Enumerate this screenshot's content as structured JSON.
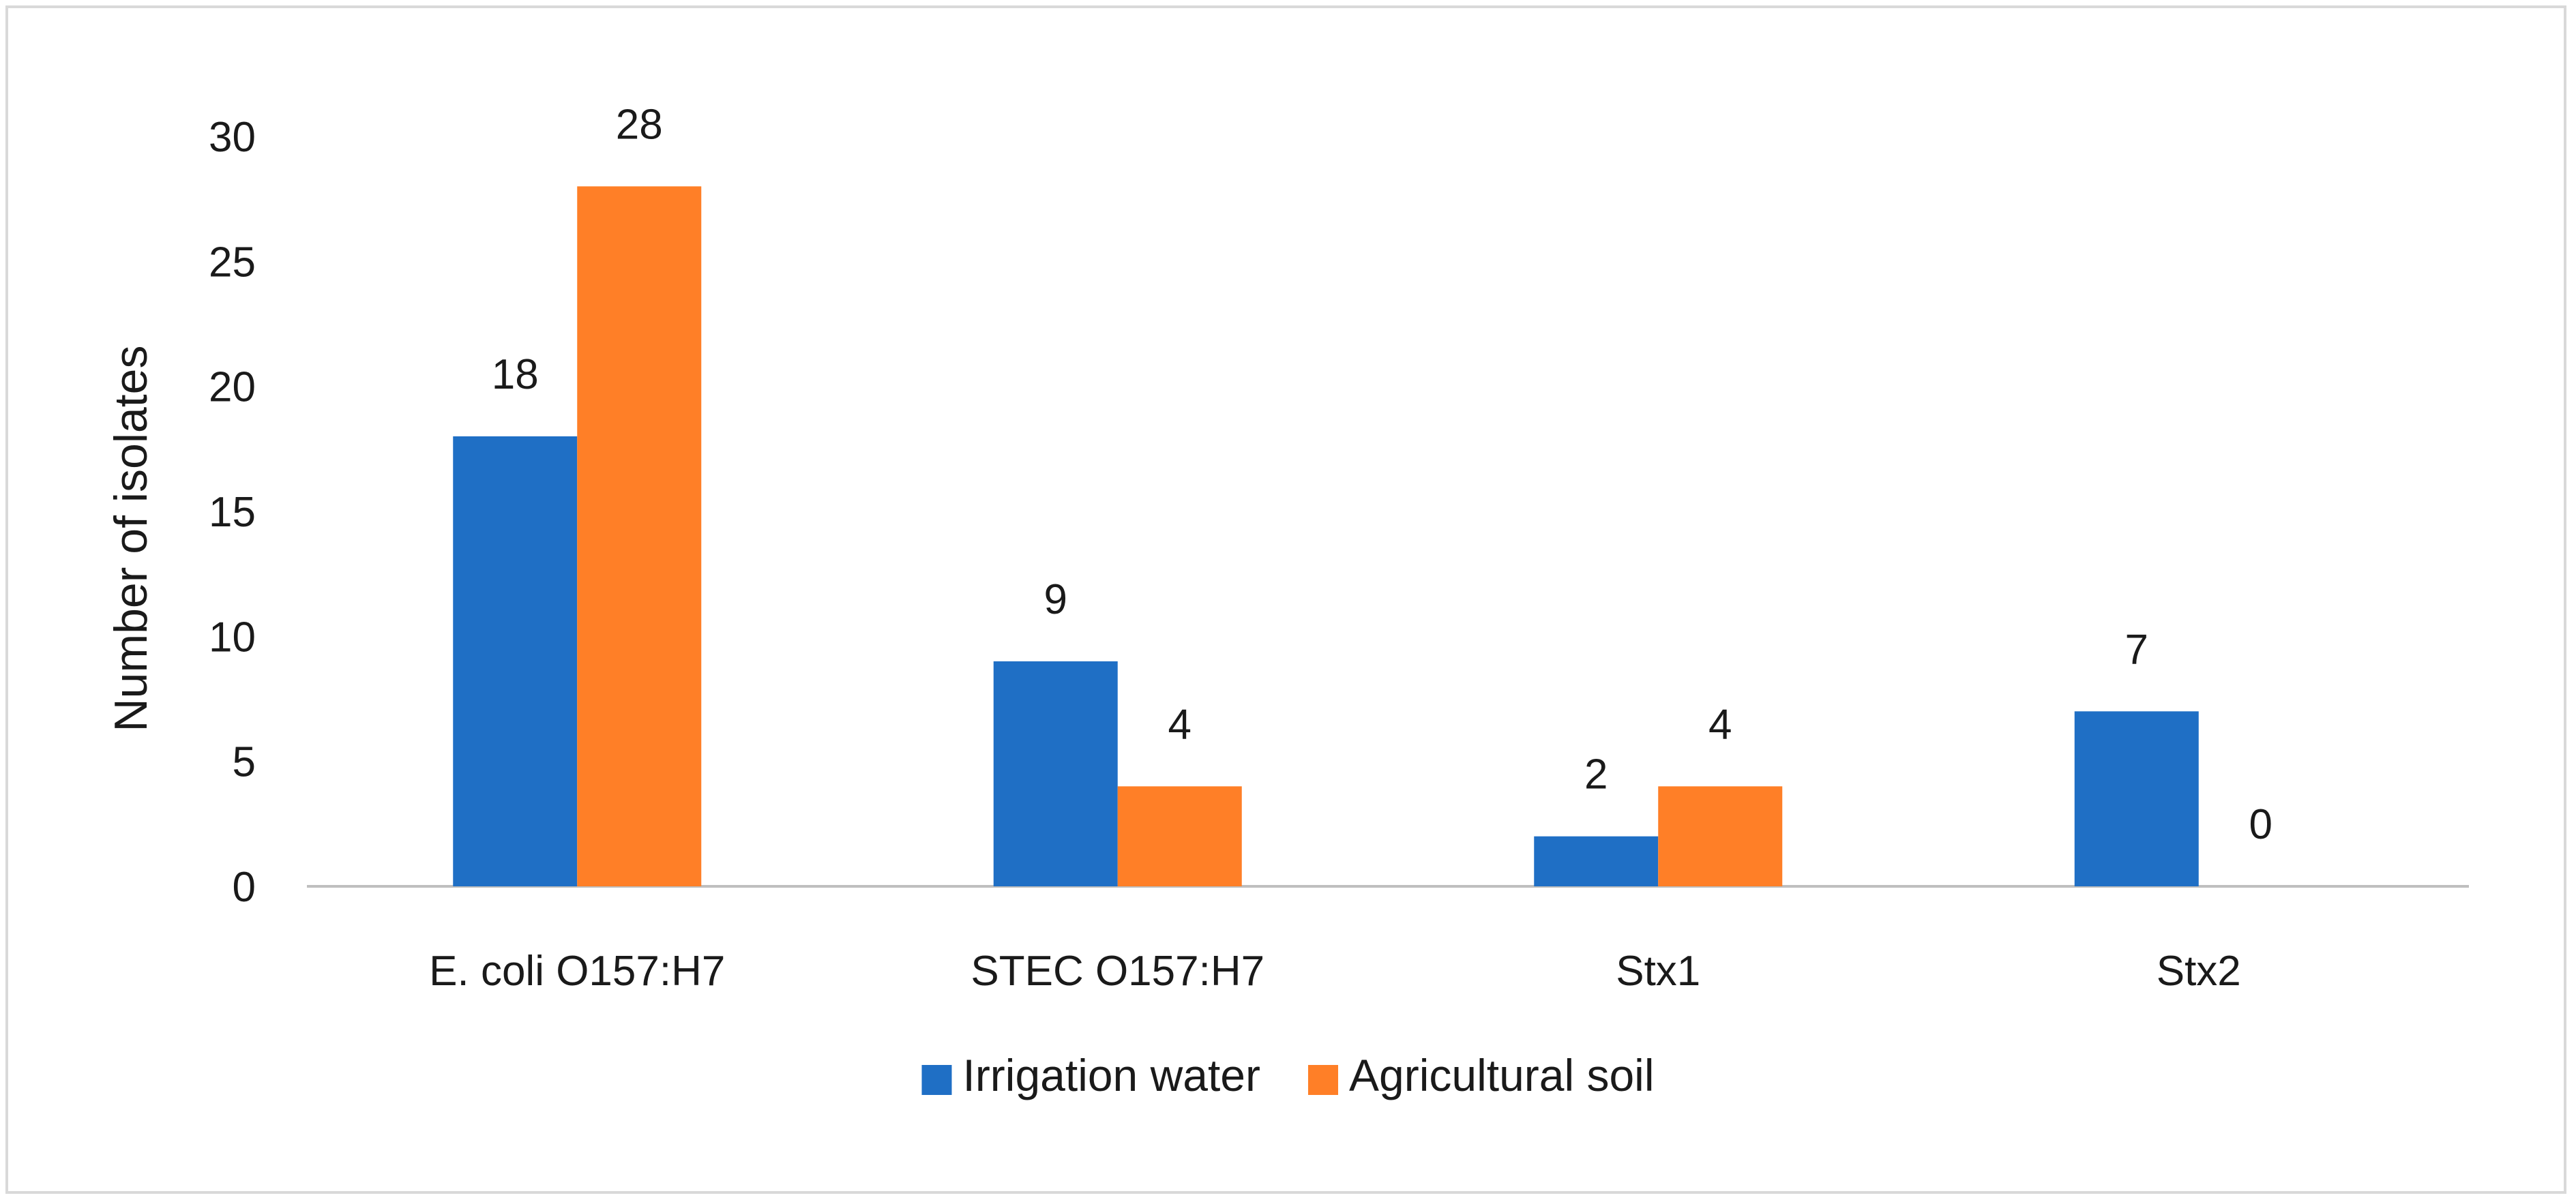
{
  "chart_data": {
    "type": "bar",
    "title": "",
    "xlabel": "",
    "ylabel": "Number of isolates",
    "ylim": [
      0,
      30
    ],
    "yticks": [
      0,
      5,
      10,
      15,
      20,
      25,
      30
    ],
    "grid": false,
    "legend_position": "bottom",
    "categories": [
      "E. coli O157:H7",
      "STEC O157:H7",
      "Stx1",
      "Stx2"
    ],
    "series": [
      {
        "name": "Irrigation water",
        "color": "#1f6fc5",
        "values": [
          18,
          9,
          2,
          7
        ]
      },
      {
        "name": "Agricultural soil",
        "color": "#ff7f27",
        "values": [
          28,
          4,
          4,
          0
        ]
      }
    ]
  }
}
